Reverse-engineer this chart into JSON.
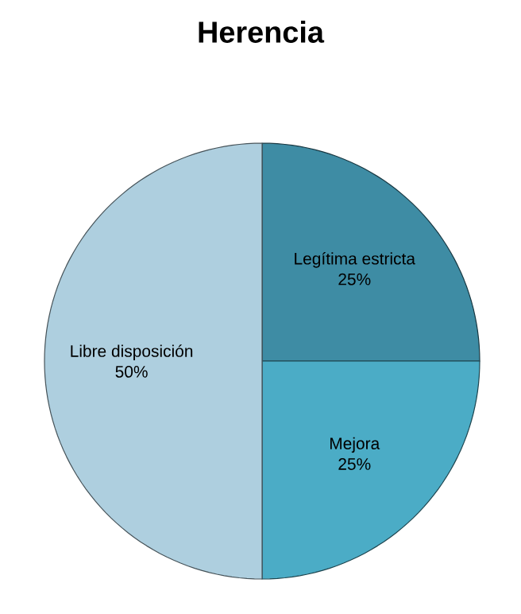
{
  "chart_data": {
    "type": "pie",
    "title": "Herencia",
    "categories": [
      "Legítima estricta",
      "Mejora",
      "Libre disposición"
    ],
    "values": [
      25,
      25,
      50
    ],
    "colors": [
      "#3e8ca4",
      "#4bacc6",
      "#aecfdf"
    ],
    "value_labels": [
      "25%",
      "25%",
      "50%"
    ]
  }
}
